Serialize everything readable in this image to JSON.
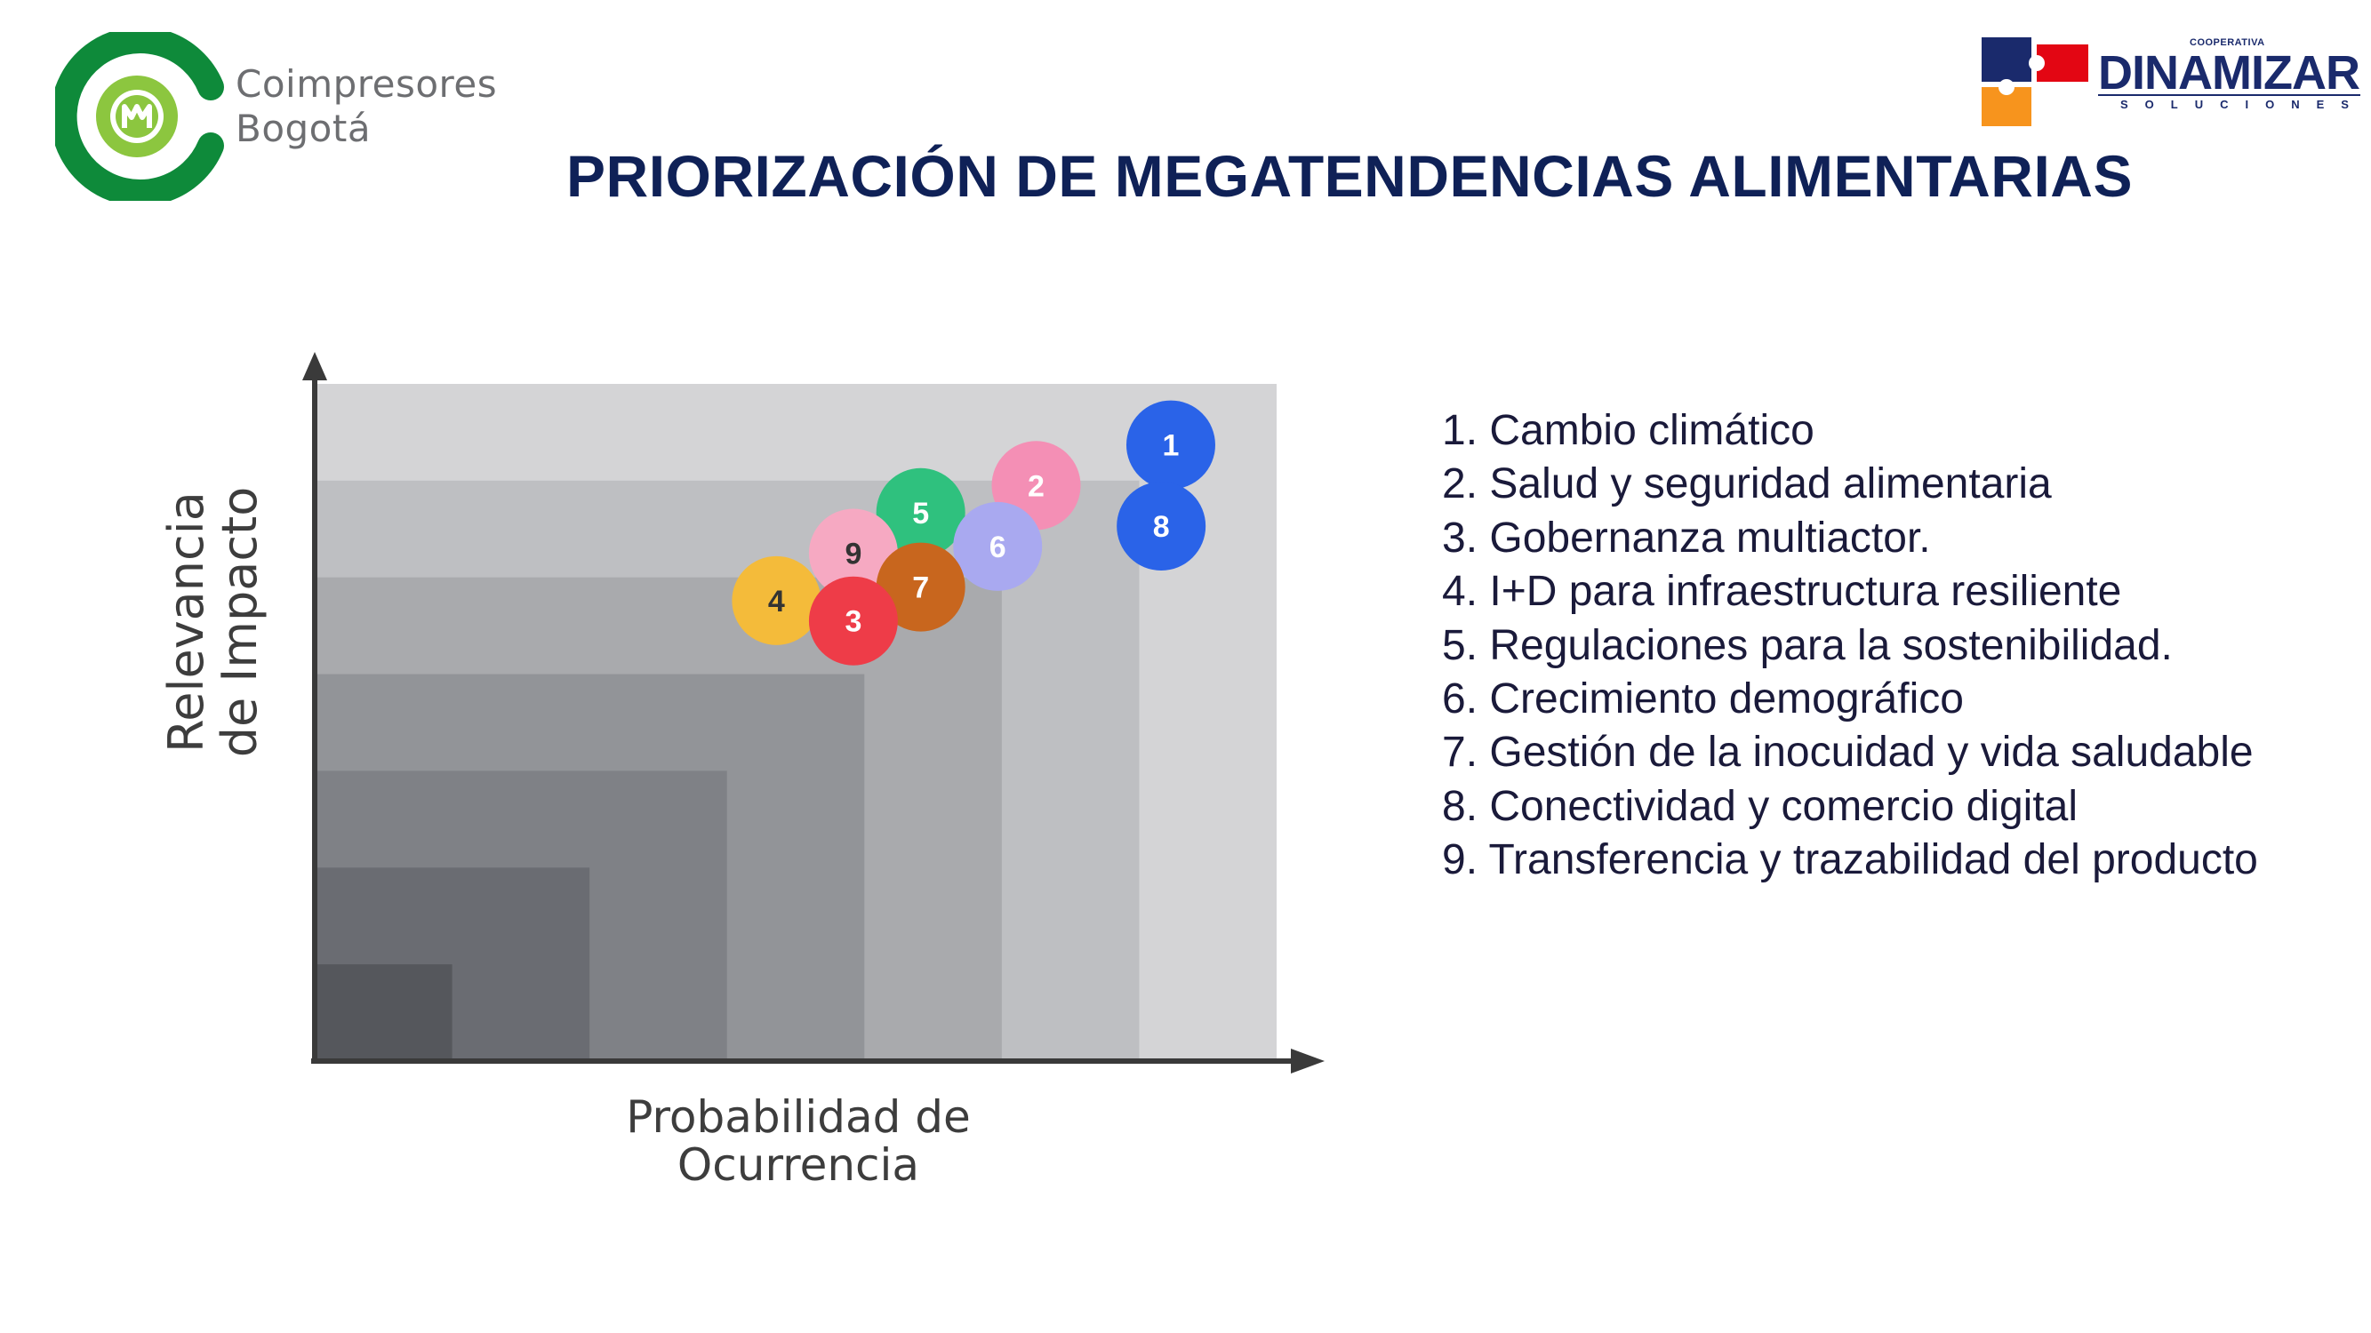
{
  "header": {
    "left_logo": {
      "line1": "Coimpresores",
      "line2": "Bogotá",
      "icon": "coimpresores-logo-icon",
      "colors": {
        "green_dark": "#0e8a3a",
        "green_light": "#8cc63f"
      }
    },
    "right_logo": {
      "top": "COOPERATIVA",
      "name": "DINAMIZAR",
      "sub": "SOLUCIONES",
      "icon": "dinamizar-puzzle-icon",
      "colors": {
        "navy": "#1a2a6c",
        "red": "#e30613",
        "orange": "#f7941d"
      }
    },
    "title": "PRIORIZACIÓN DE MEGATENDENCIAS ALIMENTARIAS"
  },
  "chart_data": {
    "type": "scatter",
    "xlabel": "Probabilidad de Ocurrencia",
    "ylabel": "Relevancia de Impacto",
    "points": [
      {
        "label": "1",
        "x": 8.9,
        "y": 9.1,
        "color": "#2a63e8"
      },
      {
        "label": "2",
        "x": 7.5,
        "y": 8.5,
        "color": "#f48fb5"
      },
      {
        "label": "3",
        "x": 5.6,
        "y": 6.5,
        "color": "#ee3c48"
      },
      {
        "label": "4",
        "x": 4.8,
        "y": 6.8,
        "color": "#f4bb3a"
      },
      {
        "label": "5",
        "x": 6.3,
        "y": 8.1,
        "color": "#2fc17e"
      },
      {
        "label": "6",
        "x": 7.1,
        "y": 7.6,
        "color": "#a9a9f0"
      },
      {
        "label": "7",
        "x": 6.3,
        "y": 7.0,
        "color": "#c8661e"
      },
      {
        "label": "8",
        "x": 8.8,
        "y": 7.9,
        "color": "#2a63e8"
      },
      {
        "label": "9",
        "x": 5.6,
        "y": 7.5,
        "color": "#f6a9c2"
      }
    ],
    "bands": [
      "#d4d4d6",
      "#bebfc2",
      "#a9aaad",
      "#929498",
      "#7f8186",
      "#6a6c72",
      "#55575c"
    ]
  },
  "legend": {
    "items": [
      "1. Cambio climático",
      "2. Salud y seguridad alimentaria",
      "3. Gobernanza multiactor.",
      "4. I+D para infraestructura resiliente",
      "5. Regulaciones para la sostenibilidad.",
      "6. Crecimiento demográfico",
      "7. Gestión de la inocuidad y vida saludable",
      "8. Conectividad y comercio digital",
      "9. Transferencia y trazabilidad del producto"
    ]
  }
}
